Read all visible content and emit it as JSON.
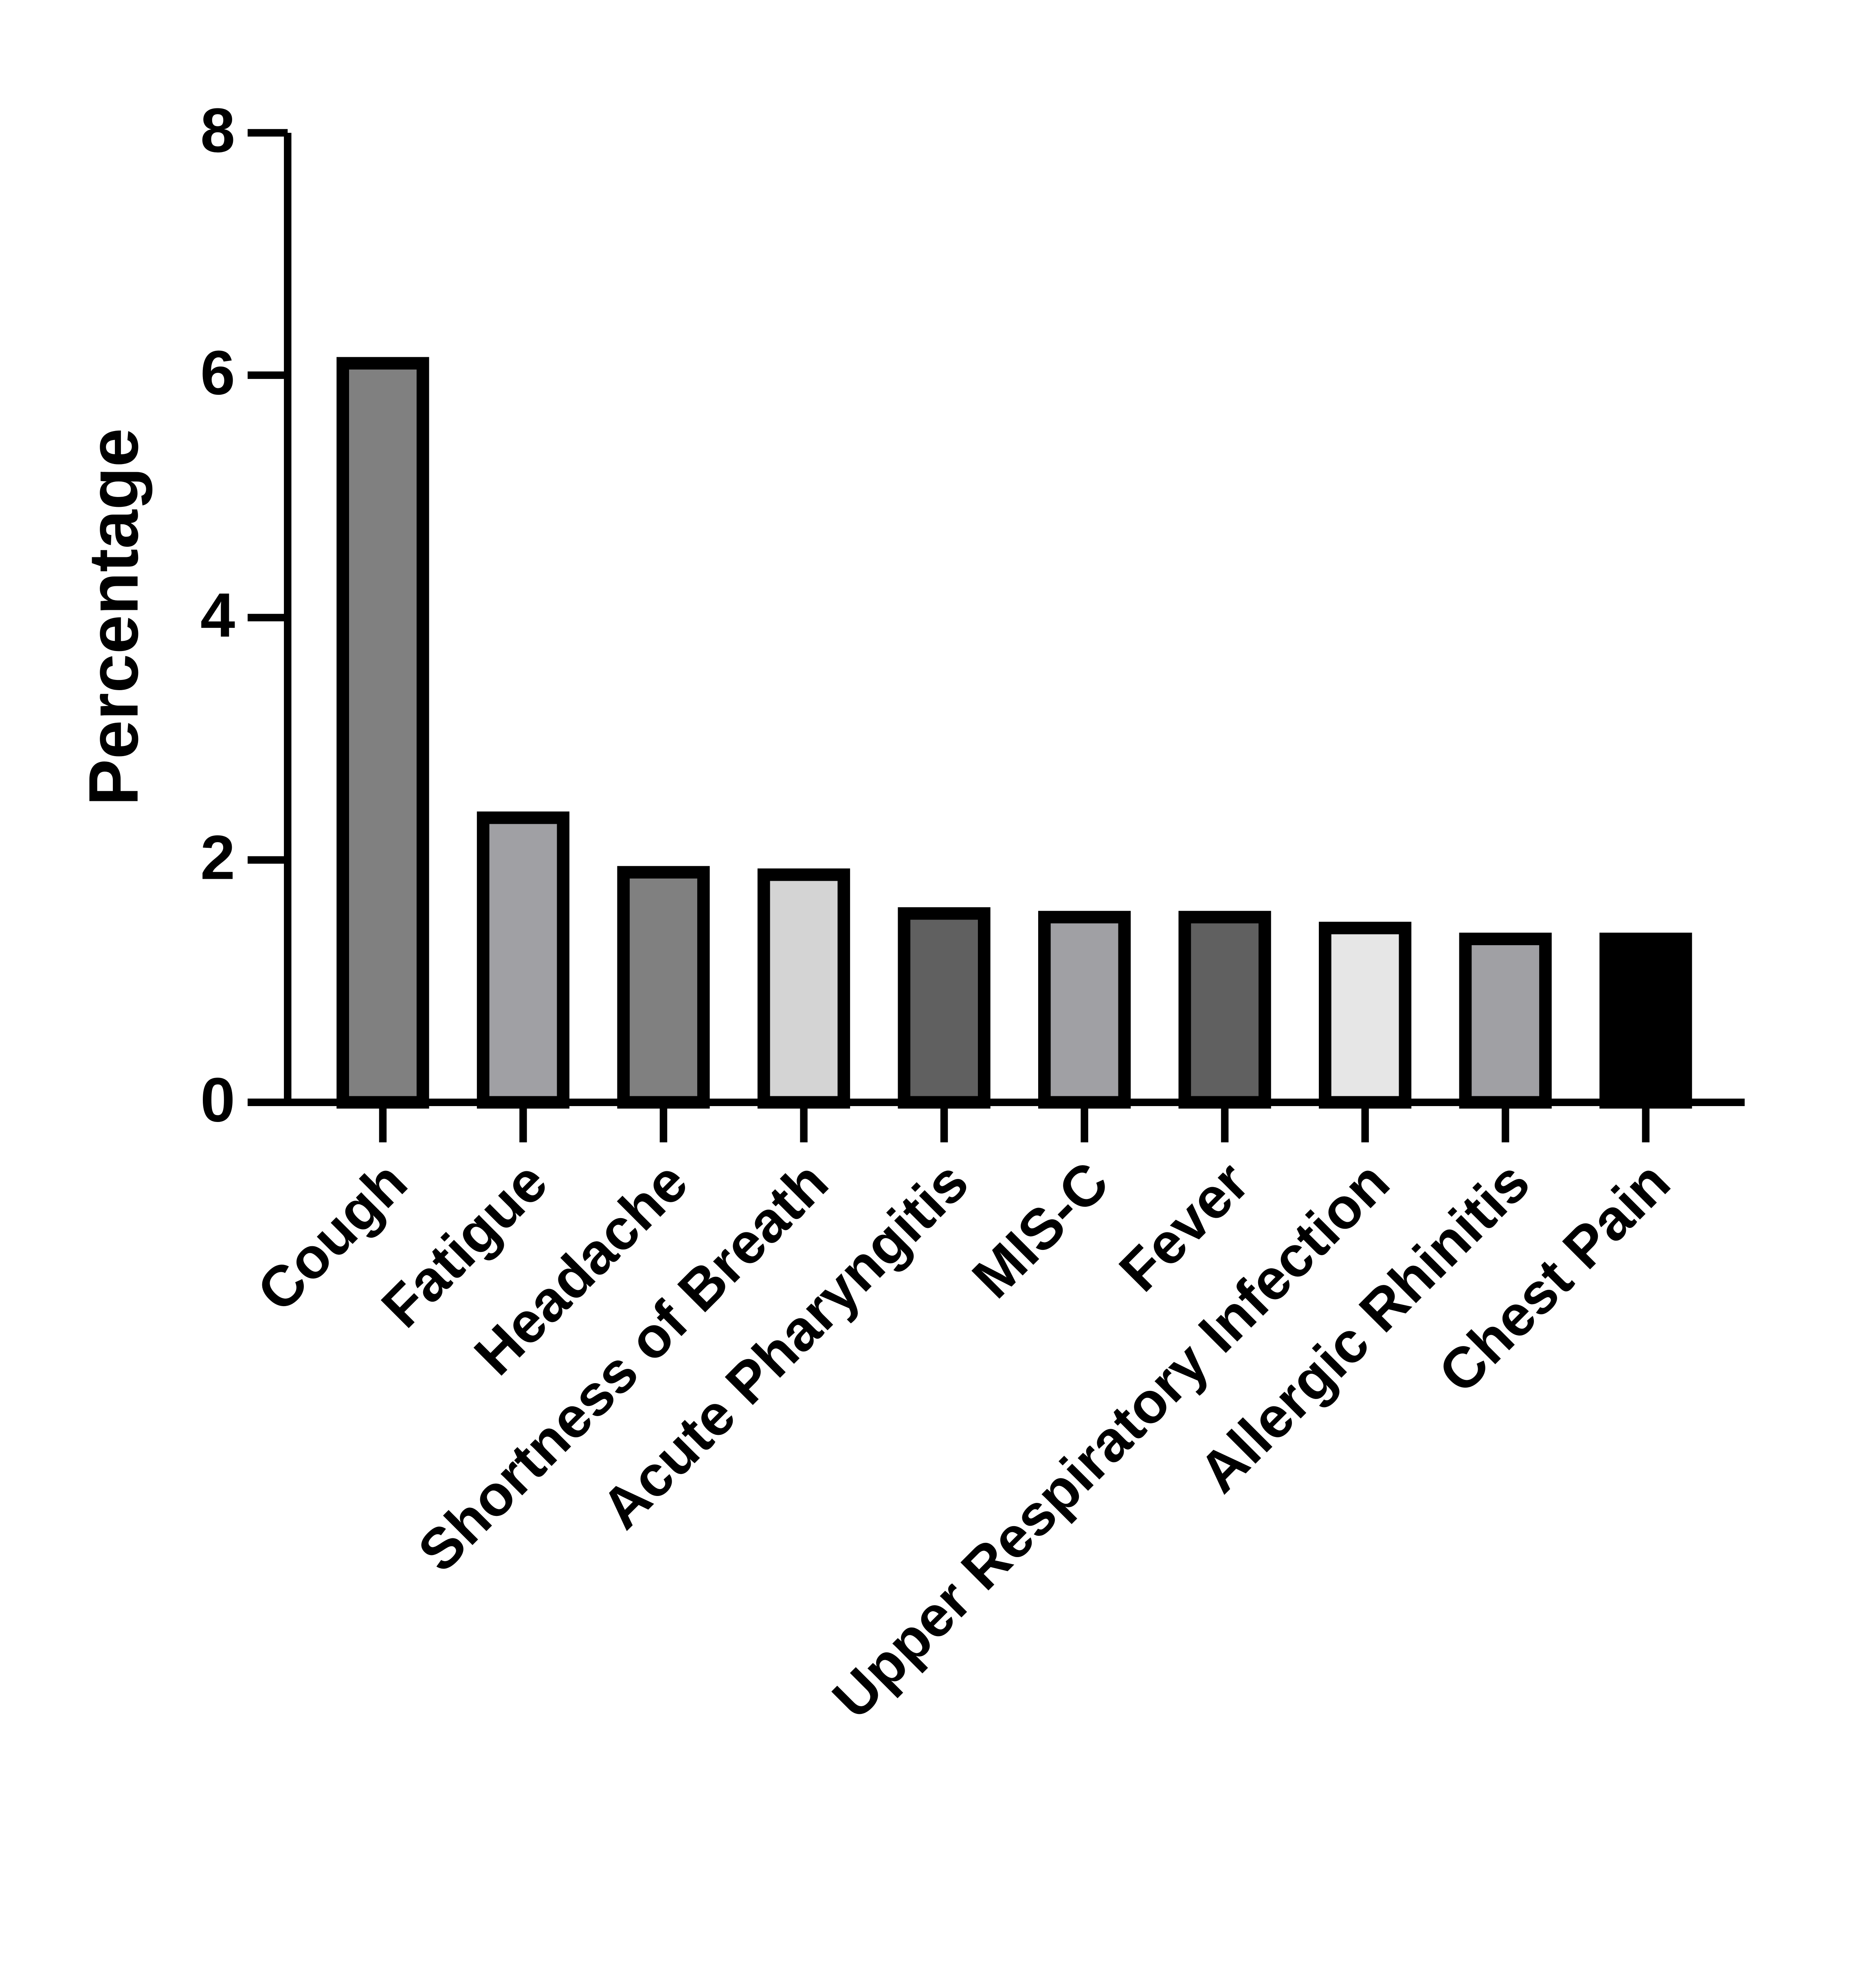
{
  "chart_data": {
    "type": "bar",
    "y_label": "Percentage",
    "categories": [
      "Cough",
      "Fatigue",
      "Headache",
      "Shortness of Breath",
      "Acute Pharyngitis",
      "MIS-C",
      "Fever",
      "Upper Respiratory Infection",
      "Allergic Rhinitis",
      "Chest Pain"
    ],
    "values": [
      6.15,
      2.4,
      1.95,
      1.93,
      1.61,
      1.58,
      1.58,
      1.49,
      1.4,
      1.4
    ],
    "colors": [
      "#808080",
      "#a0a0a4",
      "#808080",
      "#d4d4d4",
      "#606060",
      "#a0a0a4",
      "#606060",
      "#e6e6e6",
      "#a0a0a4",
      "#000000"
    ],
    "ylim": [
      0,
      8
    ],
    "yticks": [
      0,
      2,
      4,
      6,
      8
    ],
    "grid": false
  }
}
